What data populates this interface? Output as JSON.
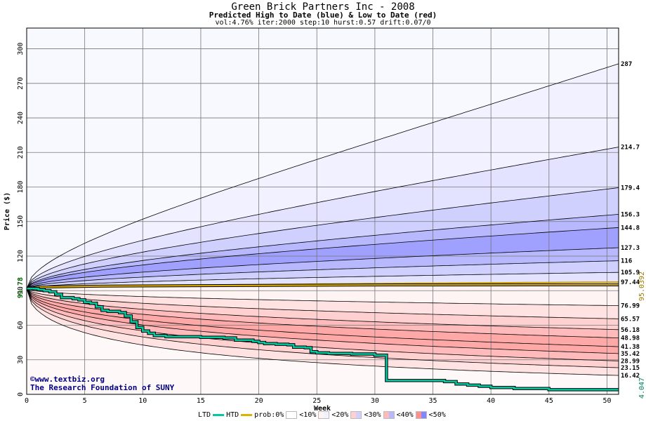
{
  "title": "Green Brick Partners Inc - 2008",
  "subtitle": "Predicted High to Date (blue) &  Low to Date (red)",
  "params": "vol:4.76% iter:2000 step:10 hurst:0.57 drift:0.07/0",
  "credits": {
    "site": "©www.textbiz.org",
    "org": "The Research Foundation of SUNY"
  },
  "legend": {
    "ltd": "LTD",
    "htd": "HTD",
    "prob": "prob:0%",
    "p10": "<10%",
    "p20": "<20%",
    "p30": "<30%",
    "p40": "<40%",
    "p50": "<50%"
  },
  "colors": {
    "ltd": "#00c8a0",
    "htd": "#e0b000",
    "blue_bands": [
      "#f1f1ff",
      "#e3e3ff",
      "#d0d0ff",
      "#b8b8ff",
      "#a0a0ff",
      "#8585ff",
      "#7070ff"
    ],
    "red_bands": [
      "#fff3f3",
      "#ffe3e3",
      "#ffd0d0",
      "#ffbbbb",
      "#ffa8a8",
      "#ff9090",
      "#ff8080"
    ]
  },
  "chart_data": {
    "type": "area",
    "xlabel": "Week",
    "ylabel": "Price ($)",
    "xlim": [
      0,
      51
    ],
    "ylim": [
      0,
      318
    ],
    "x_ticks": [
      0,
      5,
      10,
      15,
      20,
      25,
      30,
      35,
      40,
      45,
      50
    ],
    "y_ticks": [
      0,
      30,
      60,
      90,
      120,
      150,
      180,
      210,
      240,
      270,
      300
    ],
    "start_price": "91.78",
    "ltd_final": "4.047",
    "htd_final": "95.0392",
    "blue_quantile_curves": [
      {
        "final": "287",
        "value": 287
      },
      {
        "final": "214.7",
        "value": 214.7
      },
      {
        "final": "179.4",
        "value": 179.4
      },
      {
        "final": "156.3",
        "value": 156.3
      },
      {
        "final": "144.8",
        "value": 144.8
      },
      {
        "final": "127.3",
        "value": 127.3
      },
      {
        "final": "116",
        "value": 116
      },
      {
        "final": "105.9",
        "value": 105.9
      },
      {
        "final": "97.44",
        "value": 97.44
      }
    ],
    "red_quantile_curves": [
      {
        "final": "76.99",
        "value": 76.99
      },
      {
        "final": "65.57",
        "value": 65.57
      },
      {
        "final": "56.18",
        "value": 56.18
      },
      {
        "final": "48.98",
        "value": 48.98
      },
      {
        "final": "41.38",
        "value": 41.38
      },
      {
        "final": "35.42",
        "value": 35.42
      },
      {
        "final": "28.99",
        "value": 28.99
      },
      {
        "final": "23.15",
        "value": 23.15
      },
      {
        "final": "16.42",
        "value": 16.42
      }
    ],
    "ltd_series": {
      "name": "LTD",
      "x": [
        0,
        1,
        1.5,
        2,
        2.5,
        3,
        4,
        4.5,
        5,
        5.5,
        6,
        6.5,
        7,
        7.5,
        8,
        8.5,
        9,
        9.5,
        10,
        10.5,
        11,
        12,
        13,
        15,
        17,
        18,
        19,
        19.5,
        20,
        20.5,
        21,
        21.5,
        22,
        22.5,
        23,
        24,
        24.5,
        25,
        26,
        28,
        30,
        31,
        31,
        32,
        35,
        36,
        37,
        38,
        39,
        40,
        42,
        45,
        51
      ],
      "y": [
        91.78,
        91,
        90,
        89,
        87,
        84,
        83,
        82,
        80,
        79,
        76,
        73,
        72,
        72,
        71,
        68,
        63,
        58,
        55,
        53,
        51,
        50,
        50,
        49.5,
        49,
        47,
        47,
        46,
        45,
        44,
        44,
        43.5,
        43.5,
        43,
        41,
        40.5,
        37,
        36,
        35.5,
        35,
        34,
        34,
        12,
        12,
        12,
        11,
        9,
        8,
        7,
        6,
        5,
        4,
        4.047
      ]
    },
    "htd_series": {
      "name": "HTD",
      "x": [
        0,
        1,
        6.5,
        31,
        51
      ],
      "y": [
        91.78,
        93,
        94,
        95,
        95.04
      ]
    }
  }
}
